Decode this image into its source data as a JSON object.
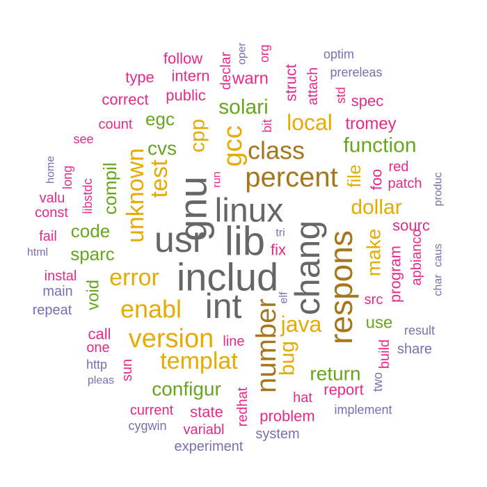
{
  "palette": {
    "gray": "#666666",
    "brown": "#a6761d",
    "gold": "#e6ab02",
    "green": "#66a61e",
    "magenta": "#e7298a",
    "purple": "#7570b3"
  },
  "words": [
    {
      "text": "includ",
      "color": "gray"
    },
    {
      "text": "lib",
      "color": "gray"
    },
    {
      "text": "linux",
      "color": "gray"
    },
    {
      "text": "usr",
      "color": "gray"
    },
    {
      "text": "int",
      "color": "gray"
    },
    {
      "text": "gnu",
      "color": "gray"
    },
    {
      "text": "chang",
      "color": "gray"
    },
    {
      "text": "percent",
      "color": "brown"
    },
    {
      "text": "class",
      "color": "brown"
    },
    {
      "text": "respons",
      "color": "brown"
    },
    {
      "text": "number",
      "color": "brown"
    },
    {
      "text": "gcc",
      "color": "gold"
    },
    {
      "text": "test",
      "color": "gold"
    },
    {
      "text": "unknown",
      "color": "gold"
    },
    {
      "text": "cpp",
      "color": "gold"
    },
    {
      "text": "enabl",
      "color": "gold"
    },
    {
      "text": "version",
      "color": "gold"
    },
    {
      "text": "templat",
      "color": "gold"
    },
    {
      "text": "error",
      "color": "gold"
    },
    {
      "text": "java",
      "color": "gold"
    },
    {
      "text": "dollar",
      "color": "gold"
    },
    {
      "text": "local",
      "color": "gold"
    },
    {
      "text": "make",
      "color": "gold"
    },
    {
      "text": "bug",
      "color": "gold"
    },
    {
      "text": "file",
      "color": "gold"
    },
    {
      "text": "function",
      "color": "green"
    },
    {
      "text": "solari",
      "color": "green"
    },
    {
      "text": "cvs",
      "color": "green"
    },
    {
      "text": "egc",
      "color": "green"
    },
    {
      "text": "compil",
      "color": "green"
    },
    {
      "text": "code",
      "color": "green"
    },
    {
      "text": "sparc",
      "color": "green"
    },
    {
      "text": "void",
      "color": "green"
    },
    {
      "text": "configur",
      "color": "green"
    },
    {
      "text": "return",
      "color": "green"
    },
    {
      "text": "use",
      "color": "green"
    },
    {
      "text": "follow",
      "color": "magenta"
    },
    {
      "text": "declar",
      "color": "magenta"
    },
    {
      "text": "oper",
      "color": "purple"
    },
    {
      "text": "org",
      "color": "magenta"
    },
    {
      "text": "optim",
      "color": "purple"
    },
    {
      "text": "type",
      "color": "magenta"
    },
    {
      "text": "intern",
      "color": "magenta"
    },
    {
      "text": "warn",
      "color": "magenta"
    },
    {
      "text": "struct",
      "color": "magenta"
    },
    {
      "text": "attach",
      "color": "magenta"
    },
    {
      "text": "prereleas",
      "color": "purple"
    },
    {
      "text": "correct",
      "color": "magenta"
    },
    {
      "text": "public",
      "color": "magenta"
    },
    {
      "text": "std",
      "color": "magenta"
    },
    {
      "text": "spec",
      "color": "magenta"
    },
    {
      "text": "count",
      "color": "magenta"
    },
    {
      "text": "bit",
      "color": "magenta"
    },
    {
      "text": "tromey",
      "color": "magenta"
    },
    {
      "text": "see",
      "color": "magenta"
    },
    {
      "text": "home",
      "color": "purple"
    },
    {
      "text": "long",
      "color": "magenta"
    },
    {
      "text": "valu",
      "color": "magenta"
    },
    {
      "text": "libstdc",
      "color": "magenta"
    },
    {
      "text": "run",
      "color": "magenta"
    },
    {
      "text": "red",
      "color": "magenta"
    },
    {
      "text": "produc",
      "color": "purple"
    },
    {
      "text": "foo",
      "color": "magenta"
    },
    {
      "text": "patch",
      "color": "magenta"
    },
    {
      "text": "const",
      "color": "magenta"
    },
    {
      "text": "sourc",
      "color": "magenta"
    },
    {
      "text": "fail",
      "color": "magenta"
    },
    {
      "text": "tri",
      "color": "purple"
    },
    {
      "text": "html",
      "color": "purple"
    },
    {
      "text": "fix",
      "color": "magenta"
    },
    {
      "text": "apbianco",
      "color": "magenta"
    },
    {
      "text": "char",
      "color": "purple"
    },
    {
      "text": "caus",
      "color": "purple"
    },
    {
      "text": "instal",
      "color": "magenta"
    },
    {
      "text": "program",
      "color": "magenta"
    },
    {
      "text": "main",
      "color": "purple"
    },
    {
      "text": "src",
      "color": "magenta"
    },
    {
      "text": "elf",
      "color": "purple"
    },
    {
      "text": "repeat",
      "color": "purple"
    },
    {
      "text": "call",
      "color": "magenta"
    },
    {
      "text": "result",
      "color": "purple"
    },
    {
      "text": "one",
      "color": "magenta"
    },
    {
      "text": "line",
      "color": "magenta"
    },
    {
      "text": "share",
      "color": "purple"
    },
    {
      "text": "build",
      "color": "magenta"
    },
    {
      "text": "http",
      "color": "purple"
    },
    {
      "text": "sun",
      "color": "magenta"
    },
    {
      "text": "pleas",
      "color": "purple"
    },
    {
      "text": "report",
      "color": "magenta"
    },
    {
      "text": "two",
      "color": "purple"
    },
    {
      "text": "hat",
      "color": "magenta"
    },
    {
      "text": "redhat",
      "color": "magenta"
    },
    {
      "text": "current",
      "color": "magenta"
    },
    {
      "text": "state",
      "color": "magenta"
    },
    {
      "text": "problem",
      "color": "magenta"
    },
    {
      "text": "implement",
      "color": "purple"
    },
    {
      "text": "cygwin",
      "color": "purple"
    },
    {
      "text": "variabl",
      "color": "magenta"
    },
    {
      "text": "system",
      "color": "purple"
    },
    {
      "text": "experiment",
      "color": "purple"
    }
  ]
}
